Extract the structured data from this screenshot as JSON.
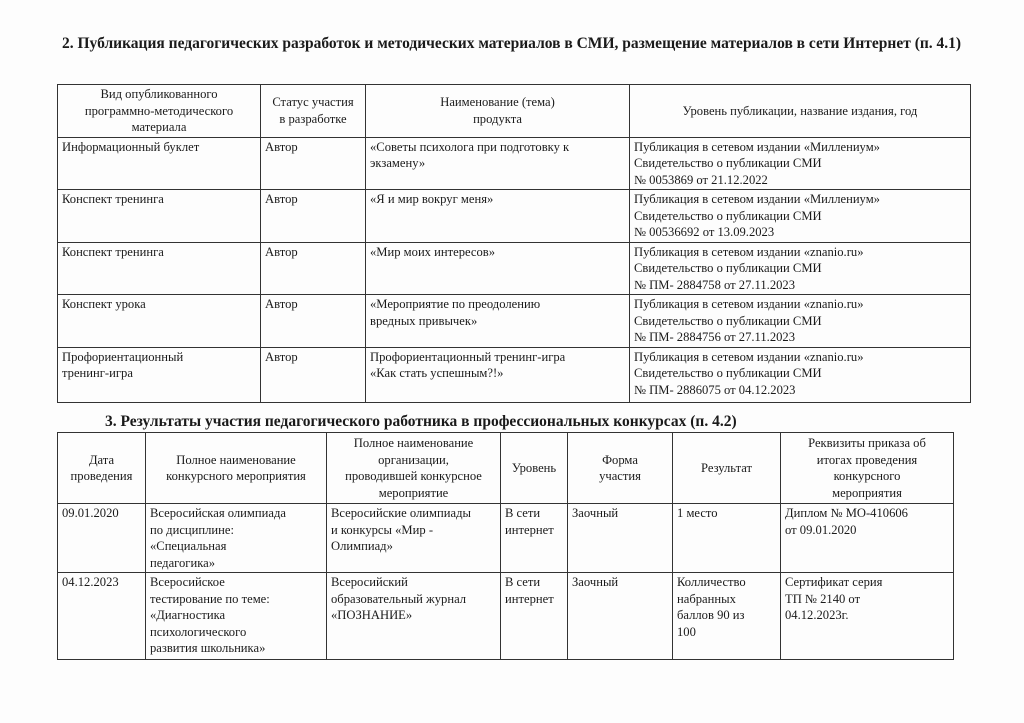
{
  "section2": {
    "title": "2. Публикация педагогических разработок и методических материалов в СМИ, размещение материалов в сети Интернет (п. 4.1)",
    "headers": [
      "Вид опубликованного\nпрограммно-методического\nматериала",
      "Статус участия\nв разработке",
      "Наименование (тема)\nпродукта",
      "Уровень публикации, название издания, год"
    ],
    "rows": [
      [
        "Информационный буклет",
        "Автор",
        "«Советы психолога при подготовку к\nэкзамену»",
        "Публикация в сетевом издании «Миллениум»\nСвидетельство о публикации СМИ\n № 0053869 от 21.12.2022"
      ],
      [
        "Конспект тренинга",
        "Автор",
        "«Я и мир вокруг меня»",
        "Публикация в сетевом издании «Миллениум»\nСвидетельство о публикации СМИ\n № 00536692 от 13.09.2023"
      ],
      [
        "Конспект тренинга",
        "Автор",
        "«Мир моих интересов»",
        "Публикация в сетевом издании «znanio.ru»\nСвидетельство о публикации СМИ\n № ПМ- 2884758  от 27.11.2023"
      ],
      [
        "Конспект урока",
        "Автор",
        "«Мероприятие по преодолению\nвредных привычек»",
        "Публикация в сетевом издании «znanio.ru»\nСвидетельство о публикации СМИ\n № ПМ- 2884756  от 27.11.2023"
      ],
      [
        "Профориентационный\nтренинг-игра",
        "Автор",
        "Профориентационный тренинг-игра\n«Как стать успешным?!»",
        "Публикация в сетевом издании «znanio.ru»\nСвидетельство о публикации СМИ\n № ПМ- 2886075  от 04.12.2023"
      ]
    ]
  },
  "section3": {
    "title": "3. Результаты участия педагогического работника в профессиональных конкурсах (п. 4.2)",
    "headers": [
      "Дата\nпроведения",
      "Полное наименование\nконкурсного мероприятия",
      "Полное наименование\nорганизации,\nпроводившей конкурсное\nмероприятие",
      "Уровень",
      "Форма\nучастия",
      "Результат",
      "Реквизиты приказа об\nитогах проведения\nконкурсного\nмероприятия"
    ],
    "rows": [
      [
        "09.01.2020",
        "Всеросийская олимпиада\nпо дисциплине:\n«Специальная\nпедагогика»",
        "Всеросийские олимпиады\nи конкурсы «Мир  -\nОлимпиад»",
        "В сети\nинтернет",
        "Заочный",
        "1 место",
        "Диплом № МО-410606\nот 09.01.2020"
      ],
      [
        "04.12.2023",
        "Всеросийское\nтестирование по теме:\n«Диагностика\nпсихологического\nразвития школьника»",
        "Всеросийский\nобразовательный журнал\n«ПОЗНАНИЕ»",
        "В сети\nинтернет",
        "Заочный",
        "Колличество\nнабранных\nбаллов 90 из\n100",
        "Сертификат серия\nТП № 2140 от\n04.12.2023г."
      ]
    ]
  }
}
